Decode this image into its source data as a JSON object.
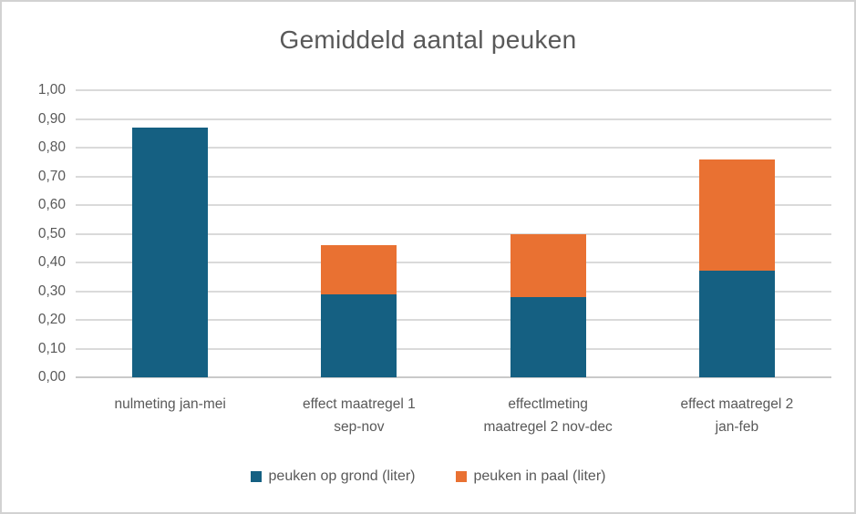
{
  "window": {
    "background": "#FFFFFF",
    "border_color": "#D2D2D2"
  },
  "chart_data": {
    "type": "bar",
    "stacked": true,
    "title": "Gemiddeld aantal peuken",
    "categories": [
      "nulmeting jan-mei",
      "effect maatregel 1 sep-nov",
      "effectlmeting maatregel 2 nov-dec",
      "effect maatregel 2 jan-feb"
    ],
    "category_label_lines": [
      [
        "nulmeting jan-mei"
      ],
      [
        "effect maatregel 1",
        "sep-nov"
      ],
      [
        "effectlmeting",
        "maatregel 2 nov-dec"
      ],
      [
        "effect maatregel 2",
        "jan-feb"
      ]
    ],
    "series": [
      {
        "name": "peuken op grond (liter)",
        "color": "#156082",
        "values": [
          0.87,
          0.29,
          0.28,
          0.37
        ]
      },
      {
        "name": "peuken in paal (liter)",
        "color": "#E97132",
        "values": [
          0.0,
          0.17,
          0.22,
          0.39
        ]
      }
    ],
    "totals": [
      0.87,
      0.46,
      0.5,
      0.76
    ],
    "ylim": [
      0,
      1.0
    ],
    "y_tick_step": 0.1,
    "y_tick_labels": [
      "0,00",
      "0,10",
      "0,20",
      "0,30",
      "0,40",
      "0,50",
      "0,60",
      "0,70",
      "0,80",
      "0,90",
      "1,00"
    ],
    "xlabel": "",
    "ylabel": "",
    "grid": true,
    "legend_position": "bottom",
    "colors": {
      "text": "#595959",
      "gridline": "#DADADA",
      "axis_line": "#C9C9C9"
    }
  }
}
